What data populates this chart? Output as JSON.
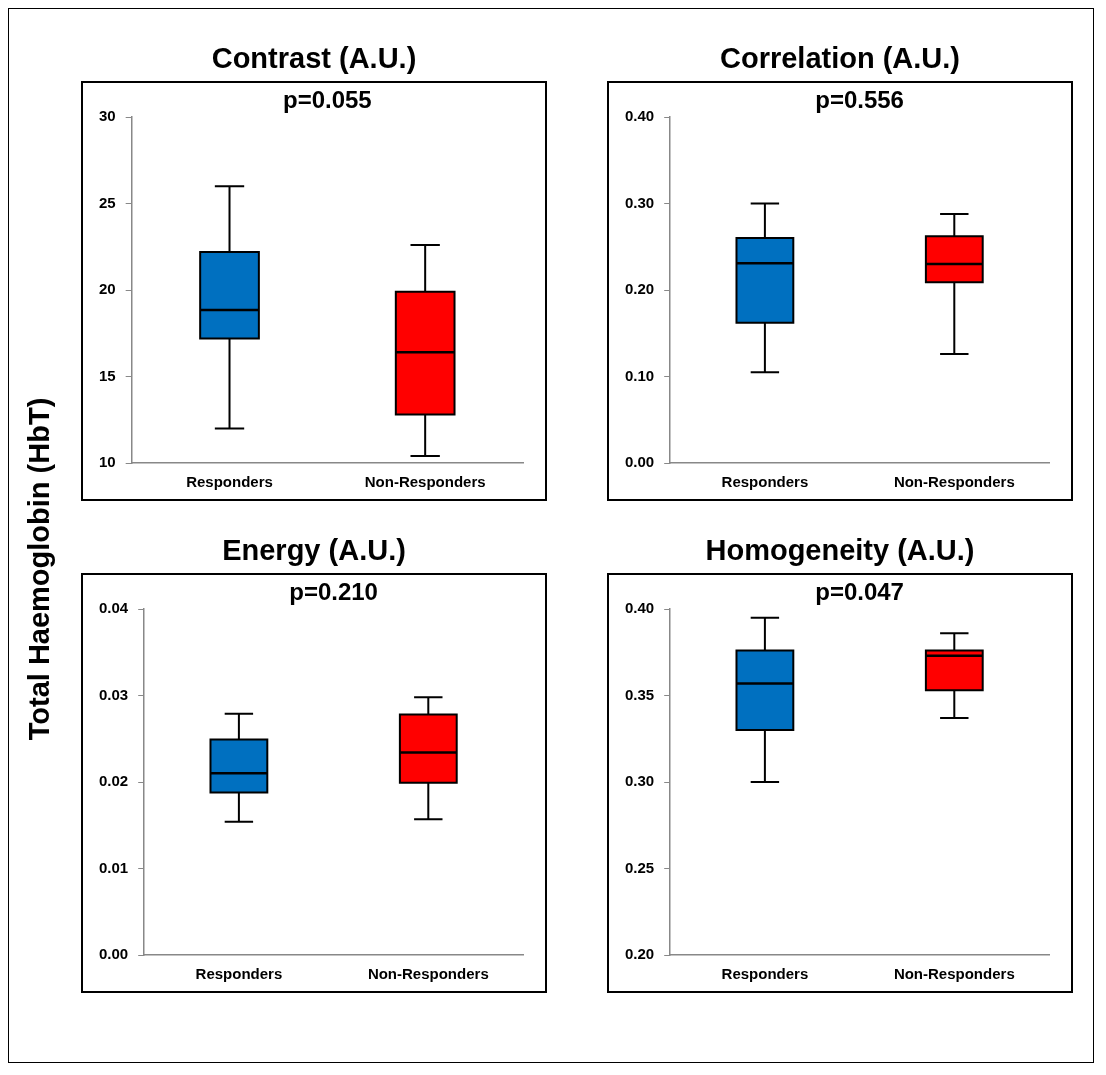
{
  "chart_data": [
    {
      "type": "box",
      "title": "Contrast (A.U.)",
      "ylabel": "Total Haemoglobin (HbT)",
      "categories": [
        "Responders",
        "Non-Responders"
      ],
      "colors": [
        "#0070c0",
        "#ff0000"
      ],
      "annotations": [
        "p=0.055"
      ],
      "ylim": [
        10,
        30
      ],
      "yticks": [
        10,
        15,
        20,
        25,
        30
      ],
      "boxes": [
        {
          "low": 12.0,
          "q1": 17.2,
          "median": 18.85,
          "q3": 22.2,
          "high": 26.0
        },
        {
          "low": 10.4,
          "q1": 12.8,
          "median": 16.4,
          "q3": 19.9,
          "high": 22.6
        }
      ]
    },
    {
      "type": "box",
      "title": "Correlation (A.U.)",
      "categories": [
        "Responders",
        "Non-Responders"
      ],
      "colors": [
        "#0070c0",
        "#ff0000"
      ],
      "annotations": [
        "p=0.556"
      ],
      "ylim": [
        0,
        0.4
      ],
      "yticks": [
        {
          "value": 0,
          "label": "0.00"
        },
        {
          "value": 0.1,
          "label": "0.10"
        },
        {
          "value": 0.2,
          "label": "0.20"
        },
        {
          "value": 0.3,
          "label": "0.30"
        },
        {
          "value": 0.4,
          "label": "0.40"
        }
      ],
      "boxes": [
        {
          "low": 0.105,
          "q1": 0.162,
          "median": 0.231,
          "q3": 0.26,
          "high": 0.3
        },
        {
          "low": 0.126,
          "q1": 0.209,
          "median": 0.23,
          "q3": 0.262,
          "high": 0.288
        }
      ]
    },
    {
      "type": "box",
      "title": "Energy (A.U.)",
      "categories": [
        "Responders",
        "Non-Responders"
      ],
      "colors": [
        "#0070c0",
        "#ff0000"
      ],
      "annotations": [
        "p=0.210"
      ],
      "ylim": [
        0,
        0.04
      ],
      "yticks": [
        {
          "value": 0,
          "label": "0.00"
        },
        {
          "value": 0.01,
          "label": "0.01"
        },
        {
          "value": 0.02,
          "label": "0.02"
        },
        {
          "value": 0.03,
          "label": "0.03"
        },
        {
          "value": 0.04,
          "label": "0.04"
        }
      ],
      "boxes": [
        {
          "low": 0.0154,
          "q1": 0.0188,
          "median": 0.021,
          "q3": 0.0249,
          "high": 0.0279
        },
        {
          "low": 0.0157,
          "q1": 0.0199,
          "median": 0.0234,
          "q3": 0.0278,
          "high": 0.0298
        }
      ]
    },
    {
      "type": "box",
      "title": "Homogeneity (A.U.)",
      "categories": [
        "Responders",
        "Non-Responders"
      ],
      "colors": [
        "#0070c0",
        "#ff0000"
      ],
      "annotations": [
        "p=0.047"
      ],
      "ylim": [
        0.2,
        0.4
      ],
      "yticks": [
        {
          "value": 0.2,
          "label": "0.20"
        },
        {
          "value": 0.25,
          "label": "0.25"
        },
        {
          "value": 0.3,
          "label": "0.30"
        },
        {
          "value": 0.35,
          "label": "0.35"
        },
        {
          "value": 0.4,
          "label": "0.40"
        }
      ],
      "boxes": [
        {
          "low": 0.3,
          "q1": 0.33,
          "median": 0.357,
          "q3": 0.376,
          "high": 0.395
        },
        {
          "low": 0.337,
          "q1": 0.353,
          "median": 0.373,
          "q3": 0.376,
          "high": 0.386
        }
      ]
    }
  ]
}
